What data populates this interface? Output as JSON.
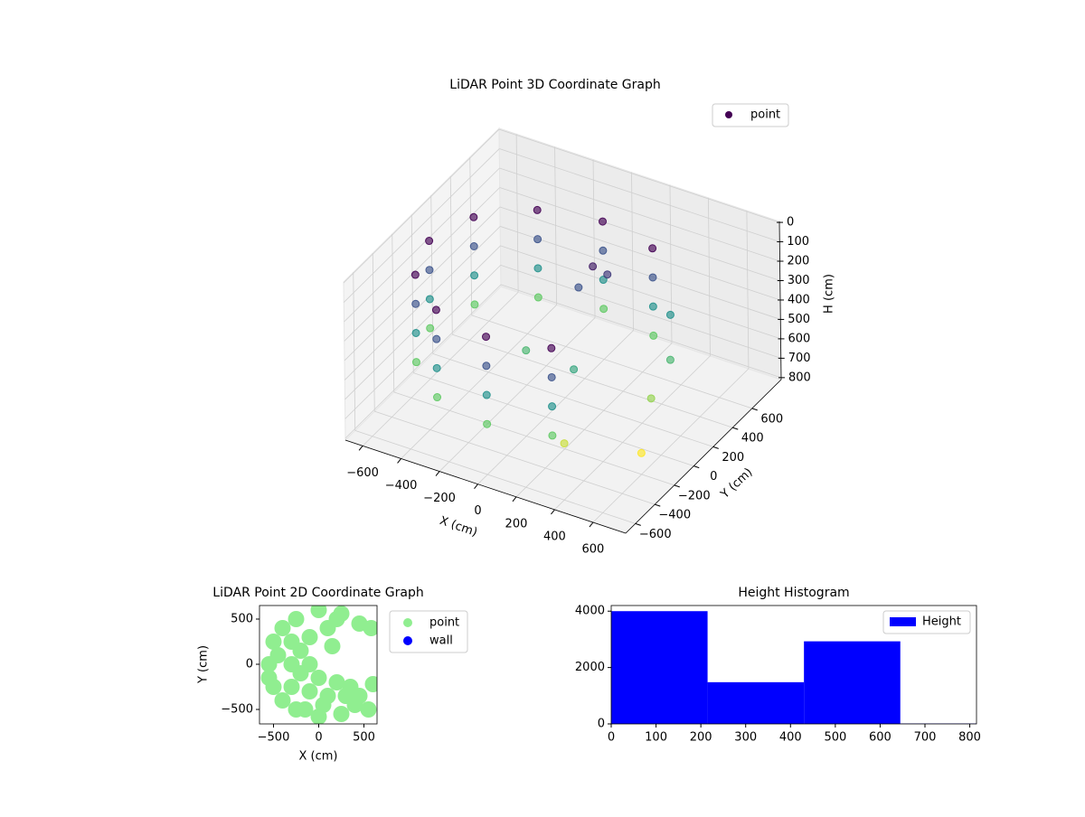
{
  "chart_data": [
    {
      "type": "scatter3d",
      "title": "LiDAR Point 3D Coordinate Graph",
      "xlabel": "X (cm)",
      "ylabel": "Y (cm)",
      "zlabel": "H (cm)",
      "xlim": [
        -690,
        770
      ],
      "ylim": [
        -700,
        900
      ],
      "zlim": [
        810,
        -5
      ],
      "xticks": [
        {
          "value": -600,
          "label": "−600"
        },
        {
          "value": -400,
          "label": "−400"
        },
        {
          "value": -200,
          "label": "−200"
        },
        0,
        200,
        400,
        600
      ],
      "yticks": [
        {
          "value": -600,
          "label": "−600"
        },
        {
          "value": -400,
          "label": "−400"
        },
        {
          "value": -200,
          "label": "−200"
        },
        0,
        200,
        400,
        600
      ],
      "zticks": [
        0,
        100,
        200,
        300,
        400,
        500,
        600,
        700,
        800
      ],
      "colormap": "viridis",
      "legend": "upper right",
      "grid": true,
      "series": [
        {
          "name": "point",
          "color": "#440154",
          "x": [
            300,
            300,
            300,
            300,
            0,
            0,
            0,
            0,
            -300,
            -300,
            -300,
            -300,
            -520,
            -520,
            -520,
            -520,
            -600,
            -600,
            -600,
            -600,
            -520,
            -520,
            -520,
            -520,
            -300,
            -300,
            -300,
            -300,
            0,
            0,
            0,
            0,
            300,
            300,
            300,
            300,
            100,
            150,
            50,
            400,
            500,
            600,
            500,
            200,
            300,
            -100
          ],
          "y": [
            520,
            520,
            520,
            520,
            600,
            600,
            600,
            600,
            520,
            520,
            520,
            520,
            300,
            300,
            300,
            300,
            0,
            0,
            0,
            0,
            -300,
            -300,
            -300,
            -300,
            -520,
            -520,
            -520,
            -520,
            -600,
            -600,
            -600,
            -600,
            -520,
            -520,
            -520,
            -520,
            300,
            350,
            250,
            500,
            300,
            -200,
            100,
            -100,
            -400,
            0
          ],
          "z": [
            100,
            250,
            400,
            550,
            100,
            250,
            400,
            550,
            100,
            250,
            400,
            550,
            100,
            250,
            400,
            550,
            100,
            250,
            400,
            550,
            100,
            250,
            400,
            550,
            100,
            250,
            400,
            550,
            100,
            250,
            400,
            550,
            100,
            250,
            400,
            550,
            150,
            200,
            250,
            400,
            500,
            700,
            600,
            450,
            650,
            500
          ]
        }
      ]
    },
    {
      "type": "scatter",
      "title": "LiDAR Point 2D Coordinate Graph",
      "xlabel": "X (cm)",
      "ylabel": "Y (cm)",
      "xlim": [
        -655,
        645
      ],
      "ylim": [
        -660,
        650
      ],
      "xticks": [
        {
          "value": -500,
          "label": "−500"
        },
        0,
        500
      ],
      "yticks": [
        {
          "value": -500,
          "label": "−500"
        },
        0,
        500
      ],
      "legend": "outside right",
      "series": [
        {
          "name": "point",
          "color": "#90ee90",
          "x": [
            -550,
            -500,
            -500,
            -400,
            -400,
            -250,
            -250,
            0,
            0,
            250,
            250,
            400,
            450,
            550,
            -300,
            -300,
            -300,
            -100,
            -100,
            -100,
            100,
            100,
            200,
            300,
            150,
            200,
            580,
            600,
            -550,
            -450,
            -200,
            -200,
            0,
            50,
            350,
            450,
            -150
          ],
          "y": [
            0,
            -250,
            250,
            -400,
            400,
            -500,
            500,
            -580,
            600,
            -550,
            560,
            -450,
            450,
            -500,
            0,
            -250,
            250,
            -300,
            300,
            0,
            -350,
            400,
            -200,
            -350,
            200,
            500,
            400,
            -220,
            -150,
            100,
            -100,
            150,
            -150,
            -450,
            -250,
            -350,
            -500
          ]
        },
        {
          "name": "wall",
          "color": "#0000ff",
          "x": [],
          "y": []
        }
      ]
    },
    {
      "type": "histogram",
      "title": "Height Histogram",
      "bins": [
        0,
        215,
        430,
        645,
        860
      ],
      "values": [
        4000,
        1480,
        2930,
        15
      ],
      "xlim": [
        0,
        815
      ],
      "ylim": [
        0,
        4200
      ],
      "xticks": [
        0,
        100,
        200,
        300,
        400,
        500,
        600,
        700,
        800
      ],
      "yticks": [
        0,
        2000,
        4000
      ],
      "legend": "upper right",
      "series_name": "Height",
      "color": "#0000ff"
    }
  ]
}
